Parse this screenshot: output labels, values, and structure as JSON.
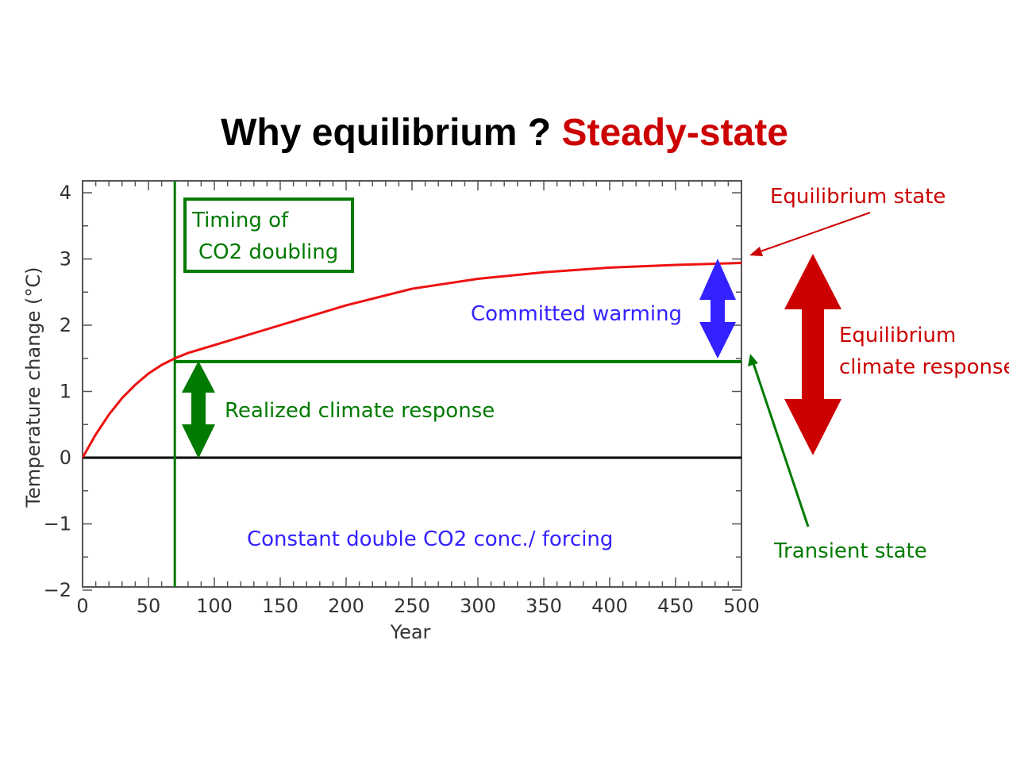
{
  "title": {
    "part1": "Why equilibrium ?",
    "part2": "Steady-state"
  },
  "colors": {
    "red": "#ee1111",
    "dark_red": "#cc0000",
    "green": "#007a00",
    "blue": "#3322ff",
    "black": "#000000"
  },
  "annotations": {
    "timing_line1": "Timing of",
    "timing_line2": "CO2 doubling",
    "committed": "Committed warming",
    "realized": "Realized climate response",
    "constant": "Constant double CO2 conc./ forcing",
    "equilibrium_state": "Equilibrium state",
    "equilibrium_response_line1": "Equilibrium",
    "equilibrium_response_line2": "climate response",
    "transient_state": "Transient state"
  },
  "chart_data": {
    "type": "line",
    "xlabel": "Year",
    "ylabel": "Temperature change (°C)",
    "xlim": [
      0,
      500
    ],
    "ylim": [
      -2,
      4.2
    ],
    "x_ticks": [
      0,
      50,
      100,
      150,
      200,
      250,
      300,
      350,
      400,
      450,
      500
    ],
    "y_ticks": [
      -2,
      -1,
      0,
      1,
      2,
      3,
      4
    ],
    "y_tick_labels": [
      "−2",
      "−1",
      "0",
      "1",
      "2",
      "3",
      "4"
    ],
    "series": [
      {
        "x": [
          0,
          10,
          20,
          30,
          40,
          50,
          60,
          70,
          80,
          100,
          150,
          200,
          250,
          300,
          350,
          400,
          450,
          500
        ],
        "y": [
          0,
          0.35,
          0.65,
          0.9,
          1.1,
          1.27,
          1.4,
          1.5,
          1.58,
          1.7,
          2.0,
          2.3,
          2.55,
          2.7,
          2.8,
          2.87,
          2.91,
          2.94
        ]
      }
    ],
    "reference_lines": {
      "doubling_year": 70,
      "transient_level": 1.45,
      "zero_level": 0
    }
  }
}
